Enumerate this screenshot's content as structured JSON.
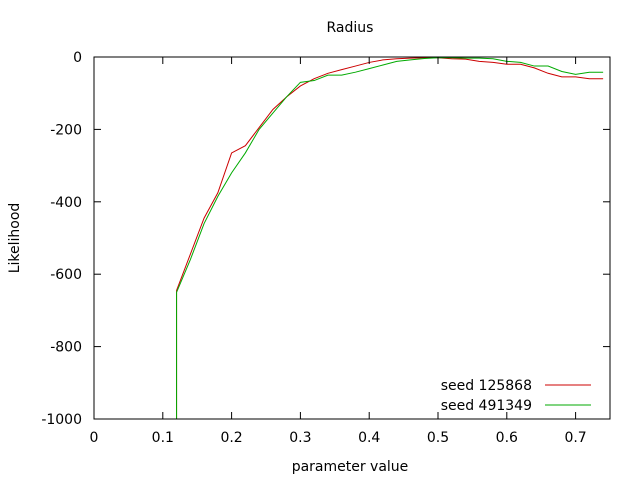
{
  "chart_data": {
    "type": "line",
    "title": "Radius",
    "xlabel": "parameter value",
    "ylabel": "Likelihood",
    "xlim": [
      0,
      0.75
    ],
    "ylim": [
      -1000,
      0
    ],
    "xticks": [
      0,
      0.1,
      0.2,
      0.3,
      0.4,
      0.5,
      0.6,
      0.7
    ],
    "xtick_labels": [
      "0",
      "0.1",
      "0.2",
      "0.3",
      "0.4",
      "0.5",
      "0.6",
      "0.7"
    ],
    "yticks": [
      -1000,
      -800,
      -600,
      -400,
      -200,
      0
    ],
    "ytick_labels": [
      "-1000",
      "-800",
      "-600",
      "-400",
      "-200",
      "0"
    ],
    "grid": false,
    "legend_position": "bottom-right",
    "series": [
      {
        "name": "seed 125868",
        "color": "#cc0000",
        "x": [
          0.12,
          0.12,
          0.14,
          0.16,
          0.18,
          0.2,
          0.22,
          0.24,
          0.26,
          0.28,
          0.3,
          0.32,
          0.34,
          0.36,
          0.38,
          0.4,
          0.42,
          0.44,
          0.46,
          0.48,
          0.5,
          0.52,
          0.54,
          0.56,
          0.58,
          0.6,
          0.62,
          0.64,
          0.66,
          0.68,
          0.7,
          0.72,
          0.74
        ],
        "y": [
          -1000,
          -645,
          -545,
          -445,
          -375,
          -265,
          -245,
          -195,
          -145,
          -110,
          -80,
          -60,
          -45,
          -35,
          -25,
          -15,
          -8,
          -5,
          -3,
          -2,
          -2,
          -5,
          -6,
          -12,
          -15,
          -20,
          -20,
          -30,
          -45,
          -55,
          -55,
          -60,
          -60
        ]
      },
      {
        "name": "seed 491349",
        "color": "#00aa00",
        "x": [
          0.12,
          0.12,
          0.14,
          0.16,
          0.18,
          0.2,
          0.22,
          0.24,
          0.26,
          0.28,
          0.3,
          0.32,
          0.34,
          0.36,
          0.38,
          0.4,
          0.42,
          0.44,
          0.46,
          0.48,
          0.5,
          0.52,
          0.54,
          0.56,
          0.58,
          0.6,
          0.62,
          0.64,
          0.66,
          0.68,
          0.7,
          0.72,
          0.74
        ],
        "y": [
          -1000,
          -650,
          -560,
          -460,
          -385,
          -320,
          -265,
          -200,
          -155,
          -110,
          -70,
          -65,
          -50,
          -50,
          -42,
          -32,
          -22,
          -12,
          -8,
          -4,
          -2,
          -2,
          -3,
          -3,
          -5,
          -12,
          -15,
          -25,
          -25,
          -40,
          -48,
          -42,
          -42
        ]
      }
    ]
  }
}
